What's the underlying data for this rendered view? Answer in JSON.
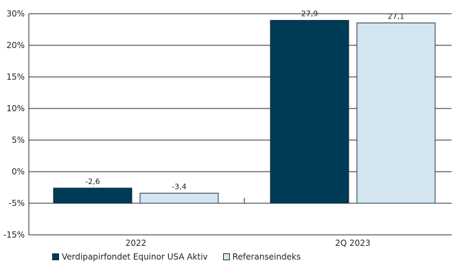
{
  "chart_data": {
    "type": "bar",
    "categories": [
      "2022",
      "2Q 2023"
    ],
    "series": [
      {
        "name": "Verdipapirfondet Equinor USA Aktiv",
        "values": [
          -2.6,
          27.9
        ],
        "labels": [
          "-2,6",
          "27,9"
        ],
        "color": "#003b55",
        "border": "#002a3d"
      },
      {
        "name": "Referanseindeks",
        "values": [
          -3.4,
          27.1
        ],
        "labels": [
          "-3,4",
          "27,1"
        ],
        "color": "#d3e6ef",
        "border": "#1a2d38"
      }
    ],
    "yticks": [
      30,
      20,
      15,
      10,
      5,
      0,
      -5,
      -15
    ],
    "ytick_labels": [
      "30%",
      "20%",
      "15%",
      "10%",
      "5%",
      "0%",
      "-5%",
      "-15%"
    ],
    "grid": true,
    "legend_position": "bottom-left"
  }
}
